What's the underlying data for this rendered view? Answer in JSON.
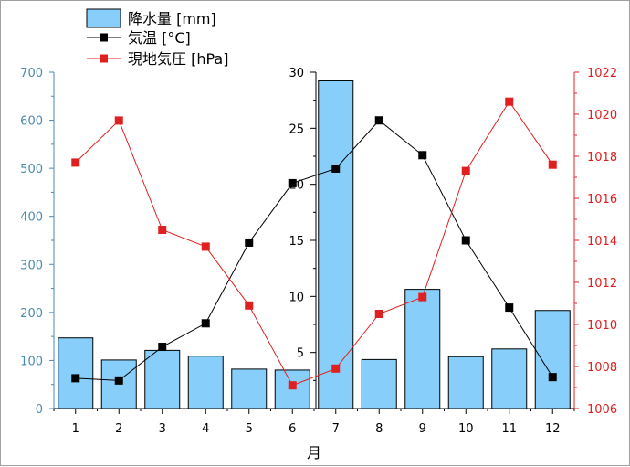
{
  "chart_data": {
    "type": "bar",
    "xlabel": "月",
    "categories": [
      "1",
      "2",
      "3",
      "4",
      "5",
      "6",
      "7",
      "8",
      "9",
      "10",
      "11",
      "12"
    ],
    "legend_placement": "top-left",
    "axes": {
      "left": {
        "ylim": [
          0,
          700
        ],
        "ticks": [
          0,
          100,
          200,
          300,
          400,
          500,
          600,
          700
        ],
        "color": "#4a8ab0",
        "series": "降水量 [mm]"
      },
      "middle": {
        "ylim": [
          0,
          30
        ],
        "ticks": [
          5,
          10,
          15,
          20,
          25,
          30
        ],
        "color": "#000000",
        "series": "気温 [°C]"
      },
      "right": {
        "ylim": [
          1006,
          1022
        ],
        "ticks": [
          1006,
          1008,
          1010,
          1012,
          1014,
          1016,
          1018,
          1020,
          1022
        ],
        "color": "#e02020",
        "series": "現地気圧 [hPa]"
      }
    },
    "series": [
      {
        "name": "降水量 [mm]",
        "kind": "bar",
        "axis": "left",
        "color": "#87cefa",
        "values": [
          147,
          101,
          121,
          109,
          82,
          80,
          682,
          102,
          248,
          108,
          124,
          204
        ]
      },
      {
        "name": "気温 [°C]",
        "kind": "line",
        "axis": "middle",
        "color": "#000000",
        "values": [
          2.7,
          2.5,
          5.5,
          7.6,
          14.8,
          20.1,
          21.4,
          25.7,
          22.6,
          15.0,
          9.0,
          2.8
        ]
      },
      {
        "name": "現地気圧 [hPa]",
        "kind": "line",
        "axis": "right",
        "color": "#e02020",
        "values": [
          1017.7,
          1019.7,
          1014.5,
          1013.7,
          1010.9,
          1007.1,
          1007.9,
          1010.5,
          1011.3,
          1017.3,
          1020.6,
          1017.6
        ]
      }
    ]
  }
}
